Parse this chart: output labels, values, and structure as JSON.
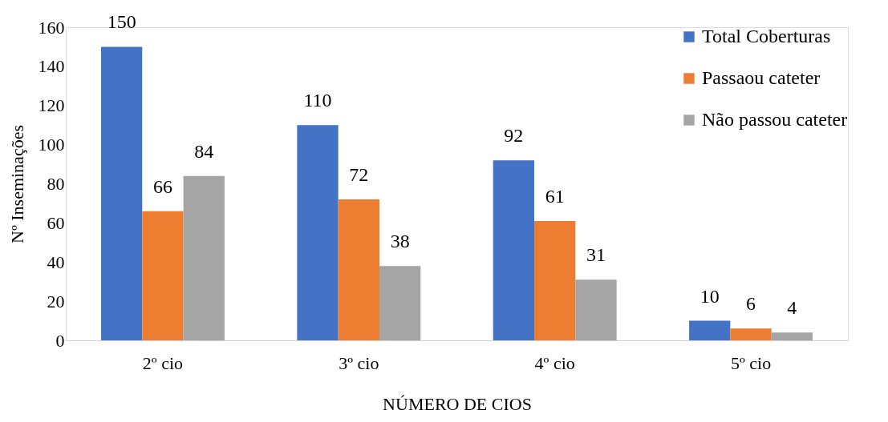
{
  "chart_data": {
    "type": "bar",
    "xlabel": "NÚMERO DE CIOS",
    "ylabel": "Nº Inseminações",
    "categories": [
      "2º cio",
      "3º cio",
      "4º cio",
      "5º cio"
    ],
    "series": [
      {
        "name": "Total Coberturas",
        "color": "#4472c4",
        "values": [
          150,
          110,
          92,
          10
        ]
      },
      {
        "name": "Passaou cateter",
        "color": "#ed7d31",
        "values": [
          66,
          72,
          61,
          6
        ]
      },
      {
        "name": "Não passou cateter",
        "color": "#a5a5a5",
        "values": [
          84,
          38,
          31,
          4
        ]
      }
    ],
    "ylim": [
      0,
      160
    ],
    "yticks": [
      0,
      20,
      40,
      60,
      80,
      100,
      120,
      140,
      160
    ],
    "data_labels": true,
    "grid": false,
    "legend": "top right"
  }
}
